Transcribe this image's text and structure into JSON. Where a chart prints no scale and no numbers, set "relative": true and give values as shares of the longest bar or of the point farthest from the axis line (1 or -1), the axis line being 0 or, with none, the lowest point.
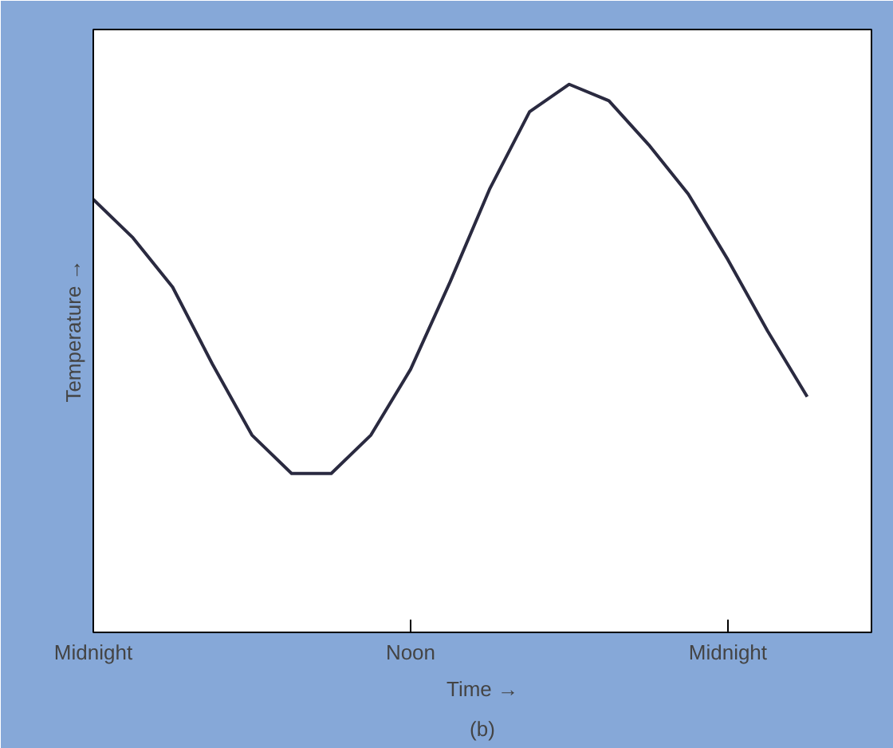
{
  "chart_data": {
    "type": "line",
    "xlabel": "Time →",
    "ylabel": "Temperature →",
    "relative": true,
    "grid": false,
    "marker": "none",
    "line_style": "solid",
    "categories": [
      "Midnight",
      null,
      null,
      null,
      null,
      null,
      null,
      null,
      "Noon",
      null,
      null,
      null,
      null,
      null,
      null,
      null,
      "Midnight",
      null,
      null
    ],
    "series": [
      {
        "color": "#2a2a40",
        "values": [
          0.79,
          0.72,
          0.63,
          0.49,
          0.36,
          0.29,
          0.29,
          0.36,
          0.48,
          0.64,
          0.81,
          0.95,
          1.0,
          0.97,
          0.89,
          0.8,
          0.68,
          0.55,
          0.43
        ]
      }
    ],
    "annotations": [
      "(b)"
    ]
  }
}
